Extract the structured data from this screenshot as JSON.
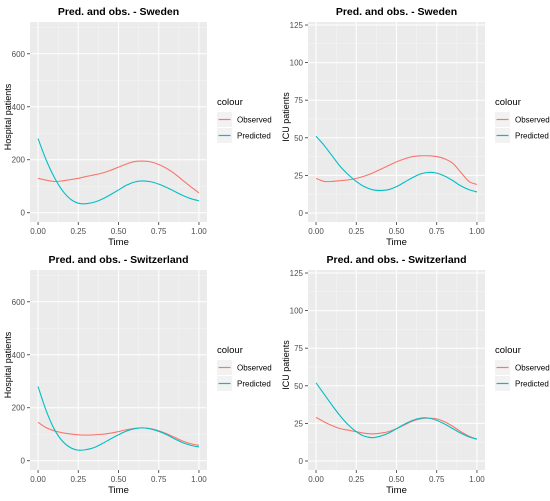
{
  "colors": {
    "observed": "#F8766D",
    "predicted": "#00BFC4",
    "panel": "#EBEBEB",
    "grid_major": "#FFFFFF",
    "text": "#4D4D4D",
    "title": "#000000"
  },
  "chart_data": [
    {
      "type": "line",
      "title": "Pred. and obs. - Sweden",
      "xlabel": "Time",
      "ylabel": "Hospital patients",
      "xlim": [
        -0.05,
        1.05
      ],
      "ylim": [
        -35,
        720
      ],
      "x_ticks": [
        0.0,
        0.25,
        0.5,
        0.75,
        1.0
      ],
      "x_tick_labels": [
        "0.00",
        "0.25",
        "0.50",
        "0.75",
        "1.00"
      ],
      "y_ticks": [
        0,
        200,
        400,
        600
      ],
      "y_tick_labels": [
        "0",
        "200",
        "400",
        "600"
      ],
      "legend": {
        "title": "colour",
        "entries": [
          "Observed",
          "Predicted"
        ],
        "position": "right"
      },
      "grid": true,
      "x": [
        0.0,
        0.05,
        0.1,
        0.15,
        0.2,
        0.25,
        0.3,
        0.35,
        0.4,
        0.45,
        0.5,
        0.55,
        0.6,
        0.65,
        0.7,
        0.75,
        0.8,
        0.85,
        0.9,
        0.95,
        1.0
      ],
      "series": [
        {
          "name": "Observed",
          "values": [
            130,
            123,
            118,
            120,
            125,
            130,
            137,
            143,
            150,
            160,
            172,
            184,
            193,
            195,
            192,
            182,
            167,
            147,
            122,
            98,
            75
          ]
        },
        {
          "name": "Predicted",
          "values": [
            280,
            200,
            135,
            85,
            52,
            36,
            34,
            40,
            52,
            68,
            86,
            104,
            116,
            120,
            117,
            108,
            95,
            80,
            65,
            53,
            45
          ]
        }
      ]
    },
    {
      "type": "line",
      "title": "Pred. and obs. - Sweden",
      "xlabel": "Time",
      "ylabel": "ICU patients",
      "xlim": [
        -0.05,
        1.05
      ],
      "ylim": [
        -6,
        127
      ],
      "x_ticks": [
        0.0,
        0.25,
        0.5,
        0.75,
        1.0
      ],
      "x_tick_labels": [
        "0.00",
        "0.25",
        "0.50",
        "0.75",
        "1.00"
      ],
      "y_ticks": [
        0,
        25,
        50,
        75,
        100,
        125
      ],
      "y_tick_labels": [
        "0",
        "25",
        "50",
        "75",
        "100",
        "125"
      ],
      "legend": {
        "title": "colour",
        "entries": [
          "Observed",
          "Predicted"
        ],
        "position": "right"
      },
      "grid": true,
      "x": [
        0.0,
        0.05,
        0.1,
        0.15,
        0.2,
        0.25,
        0.3,
        0.35,
        0.4,
        0.45,
        0.5,
        0.55,
        0.6,
        0.65,
        0.7,
        0.75,
        0.8,
        0.85,
        0.9,
        0.95,
        1.0
      ],
      "series": [
        {
          "name": "Observed",
          "values": [
            23,
            21,
            21,
            21.5,
            22,
            23,
            24.5,
            26.5,
            29,
            31.5,
            34,
            36,
            37.5,
            38,
            38,
            37.5,
            36,
            33,
            27,
            21,
            19
          ]
        },
        {
          "name": "Predicted",
          "values": [
            51,
            45,
            38,
            31,
            25.5,
            21,
            17.5,
            15.5,
            15,
            15.5,
            17.5,
            20.5,
            23.5,
            26,
            27,
            26.5,
            24.5,
            21.5,
            18,
            15.5,
            14
          ]
        }
      ]
    },
    {
      "type": "line",
      "title": "Pred. and obs. - Switzerland",
      "xlabel": "Time",
      "ylabel": "Hospital patients",
      "xlim": [
        -0.05,
        1.05
      ],
      "ylim": [
        -35,
        720
      ],
      "x_ticks": [
        0.0,
        0.25,
        0.5,
        0.75,
        1.0
      ],
      "x_tick_labels": [
        "0.00",
        "0.25",
        "0.50",
        "0.75",
        "1.00"
      ],
      "y_ticks": [
        0,
        200,
        400,
        600
      ],
      "y_tick_labels": [
        "0",
        "200",
        "400",
        "600"
      ],
      "legend": {
        "title": "colour",
        "entries": [
          "Observed",
          "Predicted"
        ],
        "position": "right"
      },
      "grid": true,
      "x": [
        0.0,
        0.05,
        0.1,
        0.15,
        0.2,
        0.25,
        0.3,
        0.35,
        0.4,
        0.45,
        0.5,
        0.55,
        0.6,
        0.65,
        0.7,
        0.75,
        0.8,
        0.85,
        0.9,
        0.95,
        1.0
      ],
      "series": [
        {
          "name": "Observed",
          "values": [
            145,
            125,
            113,
            106,
            101,
            98,
            97,
            98,
            100,
            104,
            110,
            117,
            122,
            124,
            121,
            113,
            102,
            88,
            74,
            64,
            58
          ]
        },
        {
          "name": "Predicted",
          "values": [
            280,
            190,
            120,
            75,
            50,
            40,
            42,
            50,
            65,
            82,
            98,
            112,
            121,
            124,
            120,
            111,
            98,
            82,
            68,
            58,
            52
          ]
        }
      ]
    },
    {
      "type": "line",
      "title": "Pred. and obs. - Switzerland",
      "xlabel": "Time",
      "ylabel": "ICU patients",
      "xlim": [
        -0.05,
        1.05
      ],
      "ylim": [
        -6,
        127
      ],
      "x_ticks": [
        0.0,
        0.25,
        0.5,
        0.75,
        1.0
      ],
      "x_tick_labels": [
        "0.00",
        "0.25",
        "0.50",
        "0.75",
        "1.00"
      ],
      "y_ticks": [
        0,
        25,
        50,
        75,
        100,
        125
      ],
      "y_tick_labels": [
        "0",
        "25",
        "50",
        "75",
        "100",
        "125"
      ],
      "legend": {
        "title": "colour",
        "entries": [
          "Observed",
          "Predicted"
        ],
        "position": "right"
      },
      "grid": true,
      "x": [
        0.0,
        0.05,
        0.1,
        0.15,
        0.2,
        0.25,
        0.3,
        0.35,
        0.4,
        0.45,
        0.5,
        0.55,
        0.6,
        0.65,
        0.7,
        0.75,
        0.8,
        0.85,
        0.9,
        0.95,
        1.0
      ],
      "series": [
        {
          "name": "Observed",
          "values": [
            29,
            26,
            23.5,
            21.5,
            20.5,
            19.5,
            18.5,
            18,
            18.5,
            19.5,
            21.5,
            24,
            26.5,
            28,
            28.5,
            28,
            26,
            23,
            19.5,
            16.5,
            14.5
          ]
        },
        {
          "name": "Predicted",
          "values": [
            52,
            44.5,
            37,
            30,
            24,
            19.5,
            16.5,
            15.5,
            16.5,
            18.5,
            21.5,
            24.5,
            27,
            28.5,
            28.5,
            27,
            24.5,
            21.5,
            18.5,
            16,
            14.5
          ]
        }
      ]
    }
  ]
}
